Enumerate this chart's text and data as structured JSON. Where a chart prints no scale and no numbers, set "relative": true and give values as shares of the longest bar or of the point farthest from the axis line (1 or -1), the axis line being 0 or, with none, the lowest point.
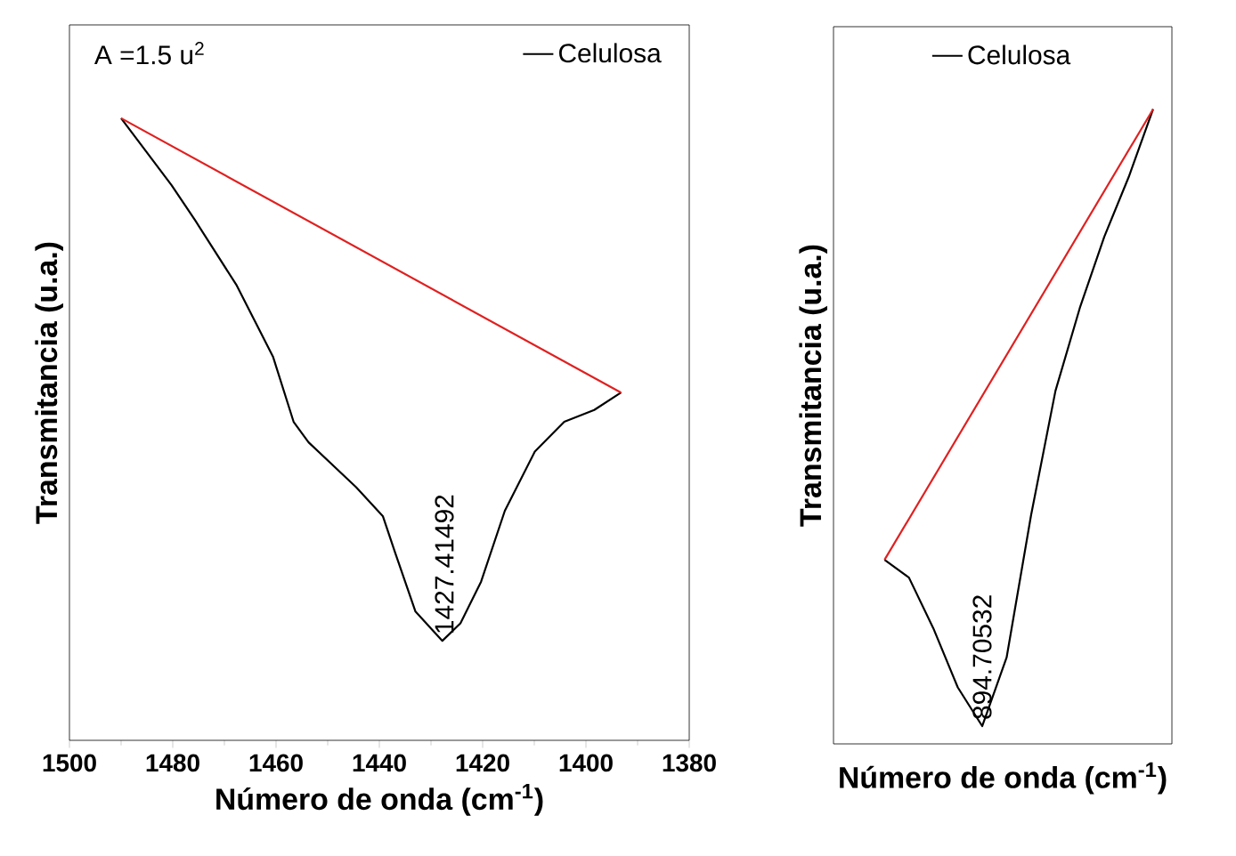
{
  "chart_data": [
    {
      "type": "line",
      "relative": true,
      "xlabel": "Número de onda (cm$^{-1}$)",
      "ylabel": "Transmitancia (u.a.)",
      "xlim": [
        1500,
        1380
      ],
      "xticks": [
        1500,
        1480,
        1460,
        1440,
        1420,
        1400,
        1380
      ],
      "legend": "top right",
      "annotations": [
        "A =1.5 u$^{2}$",
        {
          "text": "1427.41492",
          "x": 1427.41492,
          "y": 0.16
        }
      ],
      "series": [
        {
          "name": "Celulosa",
          "color": "#000000",
          "x": [
            1490,
            1480.2,
            1475.6,
            1467.6,
            1460.6,
            1456.6,
            1453.7,
            1444.5,
            1439.3,
            1437.0,
            1433.0,
            1427.8,
            1424.3,
            1420.3,
            1415.7,
            1409.9,
            1404.2,
            1398.4,
            1393.2
          ],
          "values": [
            1.0,
            0.892,
            0.835,
            0.731,
            0.617,
            0.512,
            0.479,
            0.407,
            0.36,
            0.303,
            0.207,
            0.16,
            0.188,
            0.255,
            0.369,
            0.464,
            0.512,
            0.531,
            0.559
          ]
        },
        {
          "color": "#e02020",
          "x": [
            1490,
            1393.2
          ],
          "values": [
            1.0,
            0.559
          ]
        }
      ]
    },
    {
      "type": "line",
      "relative": true,
      "xlabel": "Número de onda (cm$^{-1}$)",
      "ylabel": "Transmitancia (u.a.)",
      "legend": "top",
      "categories": [
        null,
        null,
        null,
        null,
        null,
        null,
        null,
        null,
        null,
        null,
        null,
        null
      ],
      "annotations": [
        {
          "text": "894.70532",
          "y": 0.028
        }
      ],
      "series": [
        {
          "name": "Celulosa",
          "color": "#000000",
          "values": [
            0.29,
            0.262,
            0.182,
            0.089,
            0.028,
            0.136,
            0.36,
            0.556,
            0.687,
            0.799,
            0.893,
            1.0
          ]
        },
        {
          "color": "#e02020",
          "values": [
            0.29,
            null,
            null,
            null,
            null,
            null,
            null,
            null,
            null,
            null,
            null,
            1.0
          ]
        }
      ]
    }
  ]
}
